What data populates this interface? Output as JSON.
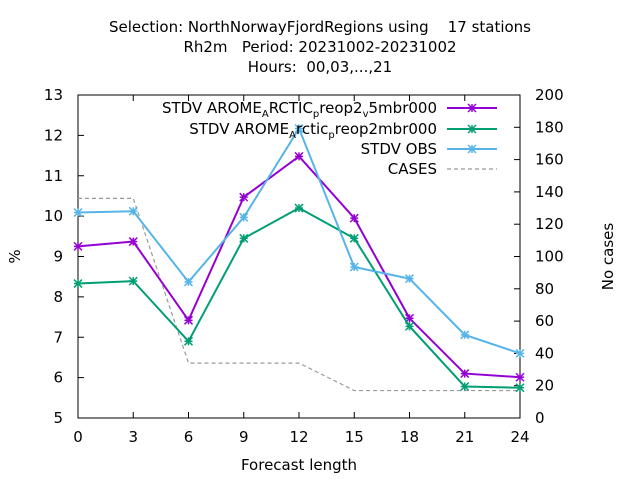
{
  "title_lines": [
    "Selection: NorthNorwayFjordRegions using    17 stations",
    "Rh2m   Period: 20231002-20231002",
    "Hours:  00,03,...,21"
  ],
  "chart_data": {
    "type": "line",
    "xlabel": "Forecast length",
    "ylabel": "%",
    "y2label": "No cases",
    "x": [
      0,
      3,
      6,
      9,
      12,
      15,
      18,
      21,
      24
    ],
    "xticks": [
      "0",
      "3",
      "6",
      "9",
      "12",
      "15",
      "18",
      "21",
      "24"
    ],
    "xlim": [
      0,
      24
    ],
    "ylim": [
      5,
      13
    ],
    "yticks": [
      "5",
      "6",
      "7",
      "8",
      "9",
      "10",
      "11",
      "12",
      "13"
    ],
    "y2lim": [
      0,
      200
    ],
    "y2ticks": [
      "0",
      "20",
      "40",
      "60",
      "80",
      "100",
      "120",
      "140",
      "160",
      "180",
      "200"
    ],
    "legend_position": "top-right",
    "series": [
      {
        "name": "STDV AROME_ARCTIC_preop2_v5mbr000",
        "legend_parts": [
          "STDV AROME",
          "A",
          "RCTIC",
          "p",
          "reop2",
          "v",
          "5mbr000"
        ],
        "color": "#9400d3",
        "marker": "x-star",
        "axis": "y",
        "values": [
          9.25,
          9.37,
          7.42,
          10.47,
          11.48,
          9.95,
          7.47,
          6.1,
          6.01
        ]
      },
      {
        "name": "STDV AROME_Arctic_preop2mbr000",
        "legend_parts": [
          "STDV AROME",
          "A",
          "rctic",
          "p",
          "reop2mbr000"
        ],
        "color": "#009e73",
        "marker": "x-star",
        "axis": "y",
        "values": [
          8.33,
          8.39,
          6.9,
          9.45,
          10.2,
          9.45,
          7.27,
          5.78,
          5.75
        ]
      },
      {
        "name": "STDV OBS",
        "legend_parts": [
          "STDV OBS"
        ],
        "color": "#56b4e9",
        "marker": "x-star",
        "axis": "y",
        "values": [
          10.09,
          10.12,
          8.37,
          9.97,
          12.17,
          8.74,
          8.45,
          7.06,
          6.6
        ]
      },
      {
        "name": "CASES",
        "legend_parts": [
          "CASES"
        ],
        "color": "#999999",
        "dashed": true,
        "axis": "y2",
        "x": [
          0,
          3,
          6,
          9,
          12,
          15,
          18,
          21,
          24
        ],
        "values": [
          136,
          136,
          34,
          34,
          34,
          17,
          17,
          17,
          17
        ]
      }
    ]
  }
}
